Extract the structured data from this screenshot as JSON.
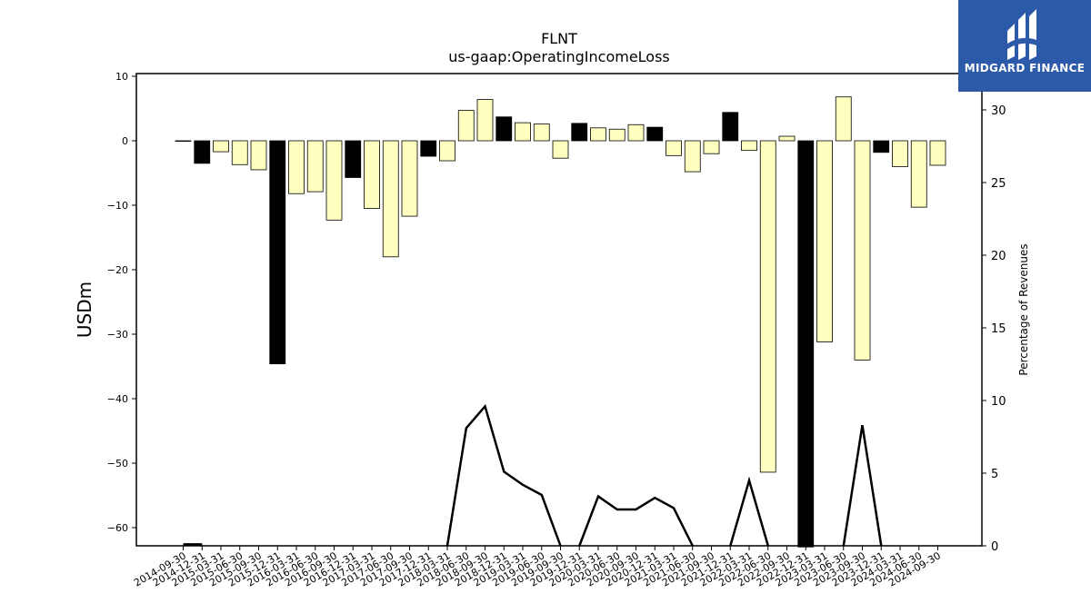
{
  "chart_data": {
    "type": "bar",
    "title": "FLNT",
    "subtitle": "us-gaap:OperatingIncomeLoss",
    "ylabel": "USDm",
    "y2label": "Percentage of Revenues",
    "ylim": [
      -63,
      10.5
    ],
    "y2lim": [
      0,
      33
    ],
    "yticks": [
      10,
      0,
      -10,
      -20,
      -30,
      -40,
      -50,
      -60
    ],
    "y2ticks": [
      0,
      5,
      10,
      15,
      20,
      25,
      30
    ],
    "grid": false,
    "colors": {
      "positive_change": "#000000",
      "negative_change": "#ffffc0",
      "line": "#000000"
    },
    "categories": [
      "2014-09-30",
      "2014-12-31",
      "2015-03-31",
      "2015-06-30",
      "2015-09-30",
      "2015-12-31",
      "2016-03-31",
      "2016-06-30",
      "2016-09-30",
      "2016-12-31",
      "2017-03-31",
      "2017-06-30",
      "2017-09-30",
      "2017-12-31",
      "2018-03-31",
      "2018-06-30",
      "2018-09-30",
      "2018-12-31",
      "2019-03-31",
      "2019-06-30",
      "2019-09-30",
      "2019-12-31",
      "2020-03-31",
      "2020-06-30",
      "2020-09-30",
      "2020-12-31",
      "2021-03-31",
      "2021-06-30",
      "2021-09-30",
      "2021-12-31",
      "2022-03-31",
      "2022-06-30",
      "2022-09-30",
      "2022-12-31",
      "2023-03-31",
      "2023-06-30",
      "2023-09-30",
      "2023-12-31",
      "2024-03-31",
      "2024-06-30",
      "2024-09-30"
    ],
    "values": [
      0,
      -3.5,
      -1.7,
      -3.7,
      -4.5,
      -34.6,
      -8.2,
      -7.9,
      -12.3,
      -5.7,
      -10.5,
      -18.0,
      -11.7,
      -2.4,
      -3.1,
      4.7,
      6.4,
      3.7,
      2.8,
      2.6,
      -2.7,
      2.7,
      2.0,
      1.8,
      2.5,
      2.1,
      -2.3,
      -4.8,
      -2.0,
      4.4,
      -1.5,
      -51.4,
      0.7,
      -63,
      -31.2,
      6.8,
      -34.0,
      -1.8,
      -4.0,
      -10.3,
      -3.8
    ],
    "bar_colors": [
      "#000000",
      "#000000",
      "#ffffc0",
      "#ffffc0",
      "#ffffc0",
      "#000000",
      "#ffffc0",
      "#ffffc0",
      "#ffffc0",
      "#000000",
      "#ffffc0",
      "#ffffc0",
      "#ffffc0",
      "#000000",
      "#ffffc0",
      "#ffffc0",
      "#ffffc0",
      "#000000",
      "#ffffc0",
      "#ffffc0",
      "#ffffc0",
      "#000000",
      "#ffffc0",
      "#ffffc0",
      "#ffffc0",
      "#000000",
      "#ffffc0",
      "#ffffc0",
      "#ffffc0",
      "#000000",
      "#ffffc0",
      "#ffffc0",
      "#ffffc0",
      "#000000",
      "#ffffc0",
      "#ffffc0",
      "#ffffc0",
      "#000000",
      "#ffffc0",
      "#ffffc0",
      "#ffffc0"
    ],
    "line_series": [
      [
        [
          0,
          0.1
        ],
        [
          1,
          0.1
        ]
      ],
      [
        [
          14,
          0
        ],
        [
          15,
          8.1
        ],
        [
          16,
          9.6
        ],
        [
          17,
          5.1
        ],
        [
          18,
          4.2
        ],
        [
          19,
          3.5
        ],
        [
          20,
          0
        ]
      ],
      [
        [
          21,
          0
        ],
        [
          22,
          3.4
        ],
        [
          23,
          2.5
        ],
        [
          24,
          2.5
        ],
        [
          25,
          3.3
        ],
        [
          26,
          2.6
        ],
        [
          27,
          0
        ]
      ],
      [
        [
          29,
          0
        ],
        [
          30,
          4.5
        ],
        [
          31,
          0
        ]
      ],
      [
        [
          33,
          0.7
        ],
        [
          33,
          0
        ]
      ],
      [
        [
          35,
          0
        ],
        [
          36,
          8.3
        ],
        [
          37,
          0
        ]
      ]
    ]
  },
  "brand": {
    "name": "MIDGARD FINANCE",
    "bg": "#2c5aa9"
  }
}
